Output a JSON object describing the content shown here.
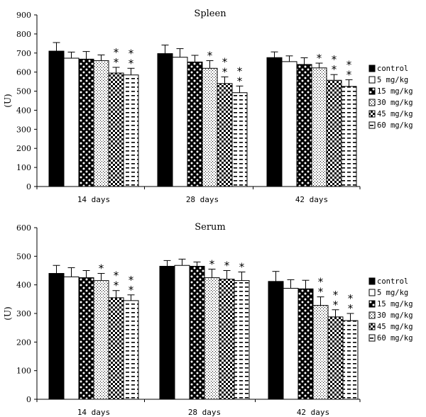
{
  "chart_data": [
    {
      "type": "bar",
      "title": "Spleen",
      "ylabel": "(U)",
      "ylim": [
        0,
        900
      ],
      "yticks": [
        "0",
        "100",
        "200",
        "300",
        "400",
        "500",
        "600",
        "700",
        "800",
        "900"
      ],
      "categories": [
        "14 days",
        "28 days",
        "42 days"
      ],
      "legend_position": "right",
      "series": [
        {
          "name": "control",
          "pattern": "solid-black",
          "values": [
            710,
            697,
            676
          ],
          "errors": [
            45,
            45,
            30
          ],
          "stars": [
            0,
            0,
            0
          ]
        },
        {
          "name": "5 mg/kg",
          "pattern": "white",
          "values": [
            673,
            678,
            655
          ],
          "errors": [
            32,
            45,
            30
          ],
          "stars": [
            0,
            0,
            0
          ]
        },
        {
          "name": "15 mg/kg",
          "pattern": "white-dots-on-black",
          "values": [
            668,
            653,
            640
          ],
          "errors": [
            40,
            35,
            35
          ],
          "stars": [
            0,
            0,
            0
          ]
        },
        {
          "name": "30 mg/kg",
          "pattern": "fine-dots",
          "values": [
            660,
            620,
            622
          ],
          "errors": [
            30,
            40,
            25
          ],
          "stars": [
            0,
            1,
            1
          ]
        },
        {
          "name": "45 mg/kg",
          "pattern": "checker",
          "values": [
            595,
            540,
            557
          ],
          "errors": [
            30,
            35,
            30
          ],
          "stars": [
            2,
            2,
            2
          ]
        },
        {
          "name": "60 mg/kg",
          "pattern": "dashes",
          "values": [
            585,
            492,
            525
          ],
          "errors": [
            35,
            35,
            35
          ],
          "stars": [
            2,
            2,
            2
          ]
        }
      ]
    },
    {
      "type": "bar",
      "title": "Serum",
      "ylabel": "(U)",
      "ylim": [
        0,
        600
      ],
      "yticks": [
        "0",
        "100",
        "200",
        "300",
        "400",
        "500",
        "600"
      ],
      "categories": [
        "14 days",
        "28 days",
        "42 days"
      ],
      "legend_position": "right",
      "series": [
        {
          "name": "control",
          "pattern": "solid-black",
          "values": [
            440,
            465,
            412
          ],
          "errors": [
            28,
            20,
            35
          ],
          "stars": [
            0,
            0,
            0
          ]
        },
        {
          "name": "5 mg/kg",
          "pattern": "white",
          "values": [
            428,
            468,
            388
          ],
          "errors": [
            32,
            22,
            30
          ],
          "stars": [
            0,
            0,
            0
          ]
        },
        {
          "name": "15 mg/kg",
          "pattern": "white-dots-on-black",
          "values": [
            425,
            465,
            386
          ],
          "errors": [
            25,
            15,
            30
          ],
          "stars": [
            0,
            0,
            0
          ]
        },
        {
          "name": "30 mg/kg",
          "pattern": "fine-dots",
          "values": [
            415,
            425,
            328
          ],
          "errors": [
            25,
            30,
            30
          ],
          "stars": [
            1,
            1,
            2
          ]
        },
        {
          "name": "45 mg/kg",
          "pattern": "checker",
          "values": [
            355,
            420,
            288
          ],
          "errors": [
            25,
            30,
            25
          ],
          "stars": [
            2,
            1,
            2
          ]
        },
        {
          "name": "60 mg/kg",
          "pattern": "dashes",
          "values": [
            345,
            415,
            275
          ],
          "errors": [
            20,
            30,
            25
          ],
          "stars": [
            2,
            1,
            2
          ]
        }
      ]
    }
  ]
}
